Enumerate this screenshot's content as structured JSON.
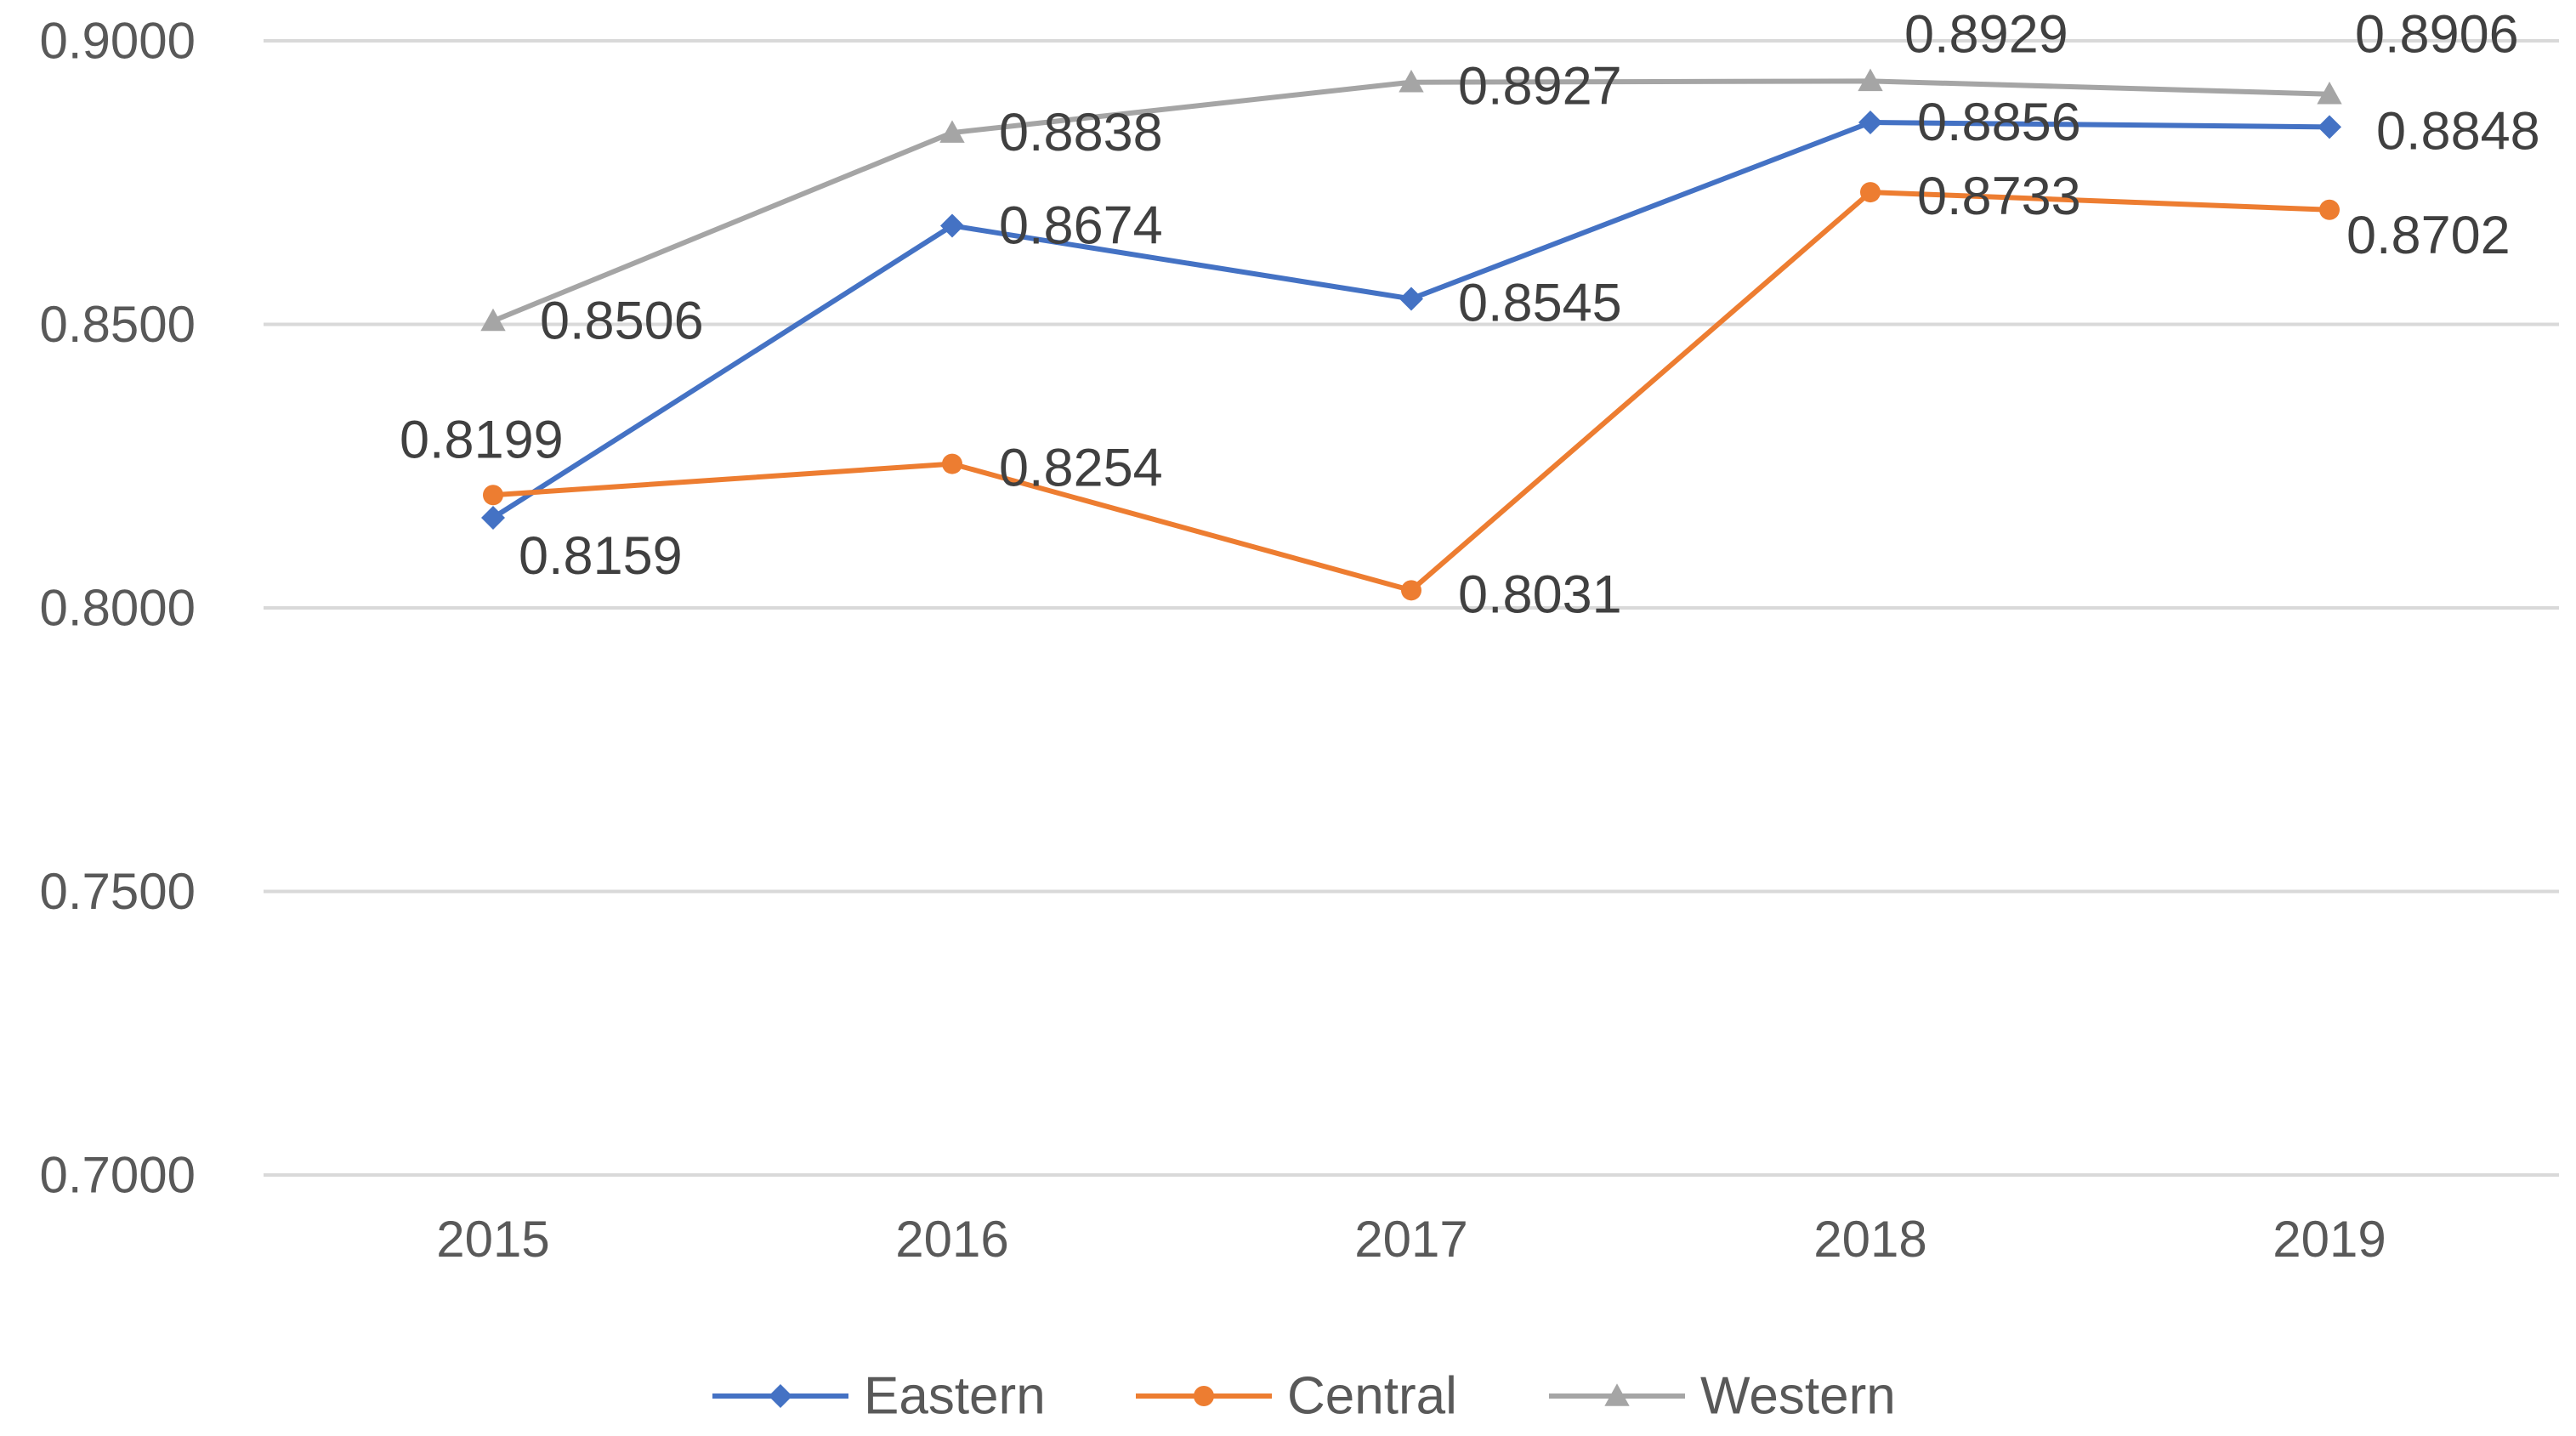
{
  "chart_data": {
    "type": "line",
    "title": "",
    "xlabel": "",
    "ylabel": "",
    "categories": [
      "2015",
      "2016",
      "2017",
      "2018",
      "2019"
    ],
    "ylim": [
      0.7,
      0.9
    ],
    "yticks": [
      "0.7000",
      "0.7500",
      "0.8000",
      "0.8500",
      "0.9000"
    ],
    "grid": true,
    "legend_position": "bottom",
    "series": [
      {
        "name": "Eastern",
        "color": "#4472C4",
        "marker": "diamond",
        "values": [
          0.8159,
          0.8674,
          0.8545,
          0.8856,
          0.8848
        ],
        "labels": [
          "0.8159",
          "0.8674",
          "0.8545",
          "0.8856",
          "0.8848"
        ]
      },
      {
        "name": "Central",
        "color": "#ED7D31",
        "marker": "circle",
        "values": [
          0.8199,
          0.8254,
          0.8031,
          0.8733,
          0.8702
        ],
        "labels": [
          "0.8199",
          "0.8254",
          "0.8031",
          "0.8733",
          "0.8702"
        ]
      },
      {
        "name": "Western",
        "color": "#A5A5A5",
        "marker": "triangle",
        "values": [
          0.8506,
          0.8838,
          0.8927,
          0.8929,
          0.8906
        ],
        "labels": [
          "0.8506",
          "0.8838",
          "0.8927",
          "0.8929",
          "0.8906"
        ]
      }
    ]
  }
}
